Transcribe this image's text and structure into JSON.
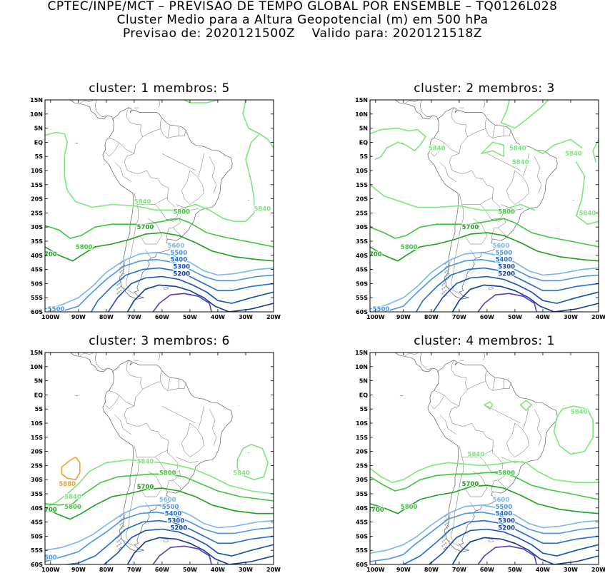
{
  "header": {
    "line1": "CPTEC/INPE/MCT – PREVISAO DE TEMPO GLOBAL POR ENSEMBLE – TQ0126L028",
    "line2": "Cluster Medio para a Altura Geopotencial (m) em 500 hPa",
    "line3": "Previsao de: 2020121500Z    Valido para: 2020121518Z"
  },
  "panels": [
    {
      "title": "cluster: 1   membros: 5"
    },
    {
      "title": "cluster: 2   membros: 3"
    },
    {
      "title": "cluster: 3   membros: 6"
    },
    {
      "title": "cluster: 4   membros: 1"
    }
  ],
  "axes": {
    "lat_labels": [
      "15N",
      "10N",
      "5N",
      "EQ",
      "5S",
      "10S",
      "15S",
      "20S",
      "25S",
      "30S",
      "35S",
      "40S",
      "45S",
      "50S",
      "55S",
      "60S"
    ],
    "lon_labels": [
      "100W",
      "90W",
      "80W",
      "70W",
      "60W",
      "50W",
      "40W",
      "30W",
      "20W"
    ]
  },
  "colors": {
    "c5880": "#f0a030",
    "c5840": "#7ce67c",
    "c5800": "#3cc83c",
    "c5700": "#1ea01e",
    "c5600": "#78b4f0",
    "c5500": "#4696e6",
    "c5400": "#1e6ed2",
    "c5300": "#1450b4",
    "c5200": "#0a3c96",
    "c5100": "#5a3cb4"
  },
  "contour_labels": {
    "p1": [
      "5840",
      "5840",
      "5800",
      "5700",
      "5800",
      "5600",
      "5500",
      "5400",
      "5300",
      "5200",
      "5500",
      "700",
      "5400"
    ],
    "p2": [
      "5840",
      "5840",
      "5840",
      "5840",
      "5840",
      "5800",
      "5700",
      "5800",
      "5600",
      "5500",
      "5400",
      "5300",
      "5200",
      "5500",
      "700",
      "5400"
    ],
    "p3": [
      "5880",
      "5840",
      "5840",
      "5840",
      "5800",
      "5800",
      "5700",
      "5600",
      "5500",
      "5400",
      "5300",
      "5200",
      "700",
      "500"
    ],
    "p4": [
      "5840",
      "5840",
      "5800",
      "5700",
      "5800",
      "5600",
      "5500",
      "5400",
      "5300",
      "5200",
      "5700",
      "5400"
    ]
  }
}
